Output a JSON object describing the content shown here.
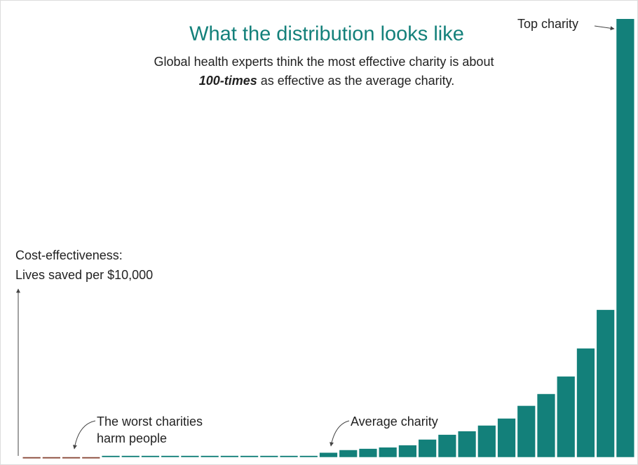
{
  "chart_data": {
    "type": "bar",
    "title": "What the distribution looks like",
    "subtitle": [
      "Global health experts think the most effective charity is about",
      "100-times",
      "as effective as the average charity."
    ],
    "y_axis_label": [
      "Cost-effectiveness:",
      "Lives saved per $10,000"
    ],
    "annotations": {
      "top": "Top charity",
      "worst": [
        "The worst charities",
        "harm people"
      ],
      "average": "Average charity"
    },
    "values": [
      -0.3,
      -0.3,
      -0.3,
      -0.3,
      0.3,
      0.3,
      0.3,
      0.3,
      0.3,
      0.3,
      0.3,
      0.3,
      0.3,
      0.3,
      0.3,
      1,
      1.6,
      1.9,
      2.2,
      2.7,
      4,
      5.1,
      5.9,
      7.2,
      8.8,
      11.7,
      14.4,
      18.4,
      24.8,
      33.6,
      100
    ],
    "color": "#13807a",
    "negative_color": "#8b4a3a",
    "ylim": [
      -1,
      100
    ]
  }
}
